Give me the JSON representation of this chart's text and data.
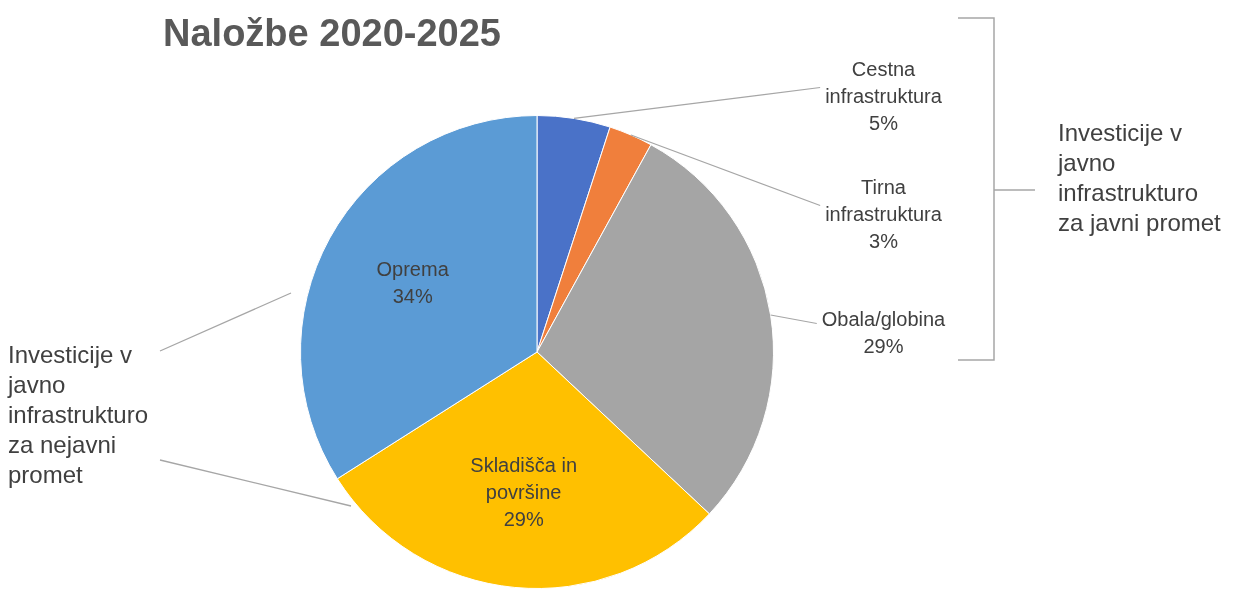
{
  "chart_data": {
    "type": "pie",
    "title": "Naložbe 2020-2025",
    "categories": [
      "Cestna infrastruktura",
      "Tirna infrastruktura",
      "Obala/globina",
      "Skladišča in površine",
      "Oprema"
    ],
    "values": [
      5,
      3,
      29,
      29,
      34
    ],
    "colors": [
      "#4a72c8",
      "#f07f3c",
      "#a5a5a5",
      "#ffc000",
      "#5b9bd5"
    ],
    "value_labels": [
      "5%",
      "3%",
      "29%",
      "29%",
      "34%"
    ],
    "legend": false,
    "annotations": [
      "Investicije v javno infrastrukturo za javni promet",
      "Investicije v javno infrastrukturo za nejavni promet"
    ]
  }
}
